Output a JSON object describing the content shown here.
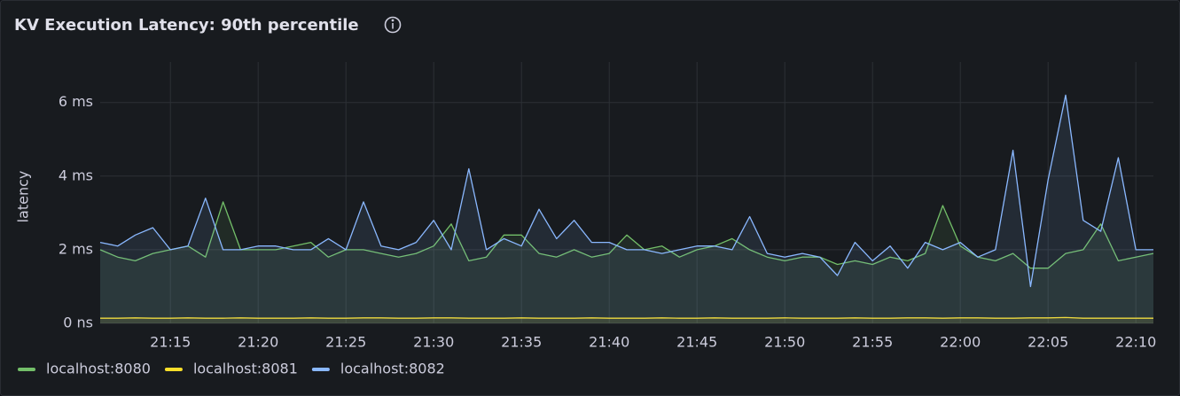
{
  "chart_data": {
    "type": "line",
    "title": "KV Execution Latency: 90th percentile",
    "y_label": "latency",
    "x": [
      "21:11",
      "21:12",
      "21:13",
      "21:14",
      "21:15",
      "21:16",
      "21:17",
      "21:18",
      "21:19",
      "21:20",
      "21:21",
      "21:22",
      "21:23",
      "21:24",
      "21:25",
      "21:26",
      "21:27",
      "21:28",
      "21:29",
      "21:30",
      "21:31",
      "21:32",
      "21:33",
      "21:34",
      "21:35",
      "21:36",
      "21:37",
      "21:38",
      "21:39",
      "21:40",
      "21:41",
      "21:42",
      "21:43",
      "21:44",
      "21:45",
      "21:46",
      "21:47",
      "21:48",
      "21:49",
      "21:50",
      "21:51",
      "21:52",
      "21:53",
      "21:54",
      "21:55",
      "21:56",
      "21:57",
      "21:58",
      "21:59",
      "22:00",
      "22:01",
      "22:02",
      "22:03",
      "22:04",
      "22:05",
      "22:06",
      "22:07",
      "22:08",
      "22:09",
      "22:10",
      "22:11"
    ],
    "series": [
      {
        "name": "localhost:8080",
        "color": "#73bf69",
        "values": [
          2.0,
          1.8,
          1.7,
          1.9,
          2.0,
          2.1,
          1.8,
          3.3,
          2.0,
          2.0,
          2.0,
          2.1,
          2.2,
          1.8,
          2.0,
          2.0,
          1.9,
          1.8,
          1.9,
          2.1,
          2.7,
          1.7,
          1.8,
          2.4,
          2.4,
          1.9,
          1.8,
          2.0,
          1.8,
          1.9,
          2.4,
          2.0,
          2.1,
          1.8,
          2.0,
          2.1,
          2.3,
          2.0,
          1.8,
          1.7,
          1.8,
          1.8,
          1.6,
          1.7,
          1.6,
          1.8,
          1.7,
          1.9,
          3.2,
          2.1,
          1.8,
          1.7,
          1.9,
          1.5,
          1.5,
          1.9,
          2.0,
          2.7,
          1.7,
          1.8,
          1.9
        ]
      },
      {
        "name": "localhost:8081",
        "color": "#fade2a",
        "values": [
          0.14,
          0.14,
          0.15,
          0.14,
          0.14,
          0.15,
          0.14,
          0.14,
          0.15,
          0.14,
          0.14,
          0.14,
          0.15,
          0.14,
          0.14,
          0.15,
          0.15,
          0.14,
          0.14,
          0.15,
          0.15,
          0.14,
          0.14,
          0.14,
          0.15,
          0.14,
          0.14,
          0.14,
          0.15,
          0.14,
          0.14,
          0.14,
          0.15,
          0.14,
          0.14,
          0.15,
          0.14,
          0.14,
          0.14,
          0.15,
          0.14,
          0.14,
          0.14,
          0.15,
          0.14,
          0.14,
          0.15,
          0.15,
          0.14,
          0.15,
          0.15,
          0.14,
          0.14,
          0.15,
          0.15,
          0.16,
          0.14,
          0.14,
          0.14,
          0.14,
          0.14
        ]
      },
      {
        "name": "localhost:8082",
        "color": "#8ab8ff",
        "values": [
          2.2,
          2.1,
          2.4,
          2.6,
          2.0,
          2.1,
          3.4,
          2.0,
          2.0,
          2.1,
          2.1,
          2.0,
          2.0,
          2.3,
          2.0,
          3.3,
          2.1,
          2.0,
          2.2,
          2.8,
          2.0,
          4.2,
          2.0,
          2.3,
          2.1,
          3.1,
          2.3,
          2.8,
          2.2,
          2.2,
          2.0,
          2.0,
          1.9,
          2.0,
          2.1,
          2.1,
          2.0,
          2.9,
          1.9,
          1.8,
          1.9,
          1.8,
          1.3,
          2.2,
          1.7,
          2.1,
          1.5,
          2.2,
          2.0,
          2.2,
          1.8,
          2.0,
          4.7,
          1.0,
          3.9,
          6.2,
          2.8,
          2.5,
          4.5,
          2.0,
          2.0
        ]
      }
    ],
    "xlim": [
      "21:11",
      "22:11"
    ],
    "xticks": [
      "21:15",
      "21:20",
      "21:25",
      "21:30",
      "21:35",
      "21:40",
      "21:45",
      "21:50",
      "21:55",
      "22:00",
      "22:05",
      "22:10"
    ],
    "ylim": [
      0,
      7.1
    ],
    "yticks": [
      {
        "value": 0,
        "label": "0 ns"
      },
      {
        "value": 2,
        "label": "2 ms"
      },
      {
        "value": 4,
        "label": "4 ms"
      },
      {
        "value": 6,
        "label": "6 ms"
      }
    ],
    "grid": true,
    "legend": "bottom-left"
  }
}
